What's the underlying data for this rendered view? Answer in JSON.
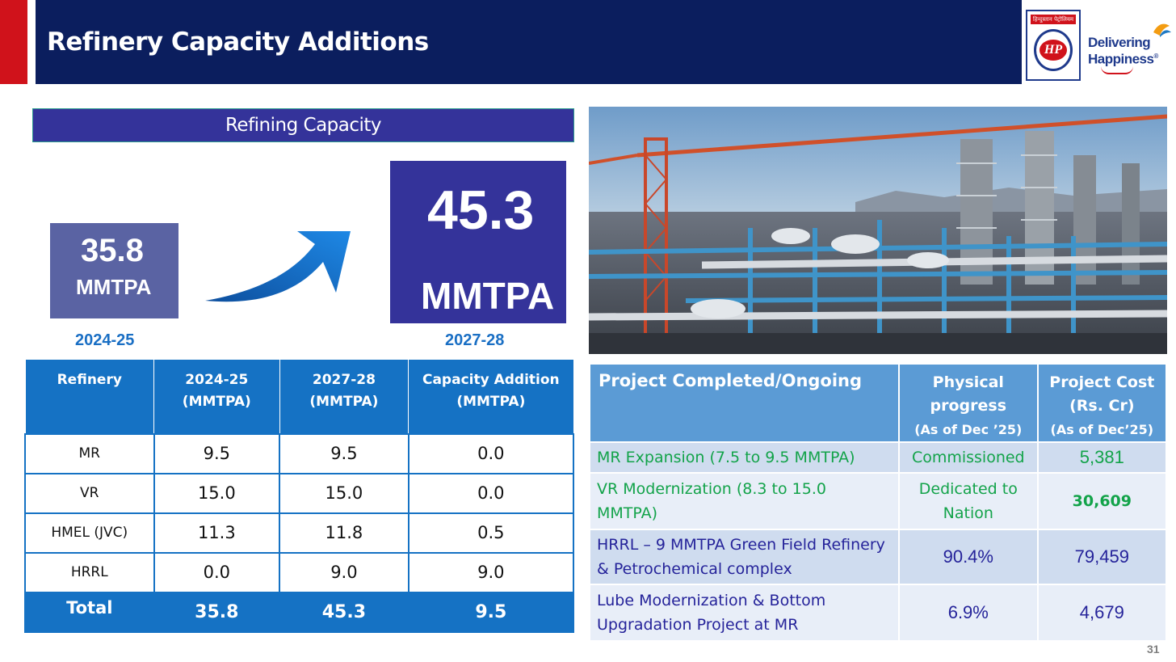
{
  "header": {
    "title": "Refinery Capacity Additions"
  },
  "logo": {
    "hindi_text": "हिन्दुस्तान पेट्रोलियम",
    "emblem_text": "HP",
    "tagline_line1": "Delivering",
    "tagline_line2": "Happiness",
    "tagline_mark": "®"
  },
  "capacity": {
    "header": "Refining Capacity",
    "current": {
      "value": "35.8",
      "unit": "MMTPA",
      "year": "2024-25"
    },
    "target": {
      "value": "45.3",
      "unit": "MMTPA",
      "year": "2027-28"
    }
  },
  "refinery_table": {
    "headers": [
      "Refinery",
      "2024-25\n(MMTPA)",
      "2027-28\n(MMTPA)",
      "Capacity Addition\n(MMTPA)"
    ],
    "rows": [
      [
        "MR",
        "9.5",
        "9.5",
        "0.0"
      ],
      [
        "VR",
        "15.0",
        "15.0",
        "0.0"
      ],
      [
        "HMEL (JVC)",
        "11.3",
        "11.8",
        "0.5"
      ],
      [
        "HRRL",
        "0.0",
        "9.0",
        "9.0"
      ]
    ],
    "total": [
      "Total",
      "35.8",
      "45.3",
      "9.5"
    ]
  },
  "projects_table": {
    "header_project": "Project Completed/Ongoing",
    "header_progress": "Physical progress",
    "header_progress_sub": "(As of Dec ’25)",
    "header_cost": "Project Cost (Rs. Cr)",
    "header_cost_sub": "(As of Dec’25)",
    "rows": [
      {
        "project": "MR Expansion (7.5 to 9.5 MMTPA)",
        "progress": "Commissioned",
        "cost": "5,381"
      },
      {
        "project": "VR Modernization (8.3 to 15.0 MMTPA)",
        "progress": "Dedicated to Nation",
        "cost": "30,609"
      },
      {
        "project": "HRRL – 9 MMTPA Green Field Refinery & Petrochemical complex",
        "progress": "90.4%",
        "cost": "79,459"
      },
      {
        "project": "Lube Modernization & Bottom Upgradation Project at MR",
        "progress": "6.9%",
        "cost": "4,679"
      }
    ]
  },
  "page_number": "31"
}
